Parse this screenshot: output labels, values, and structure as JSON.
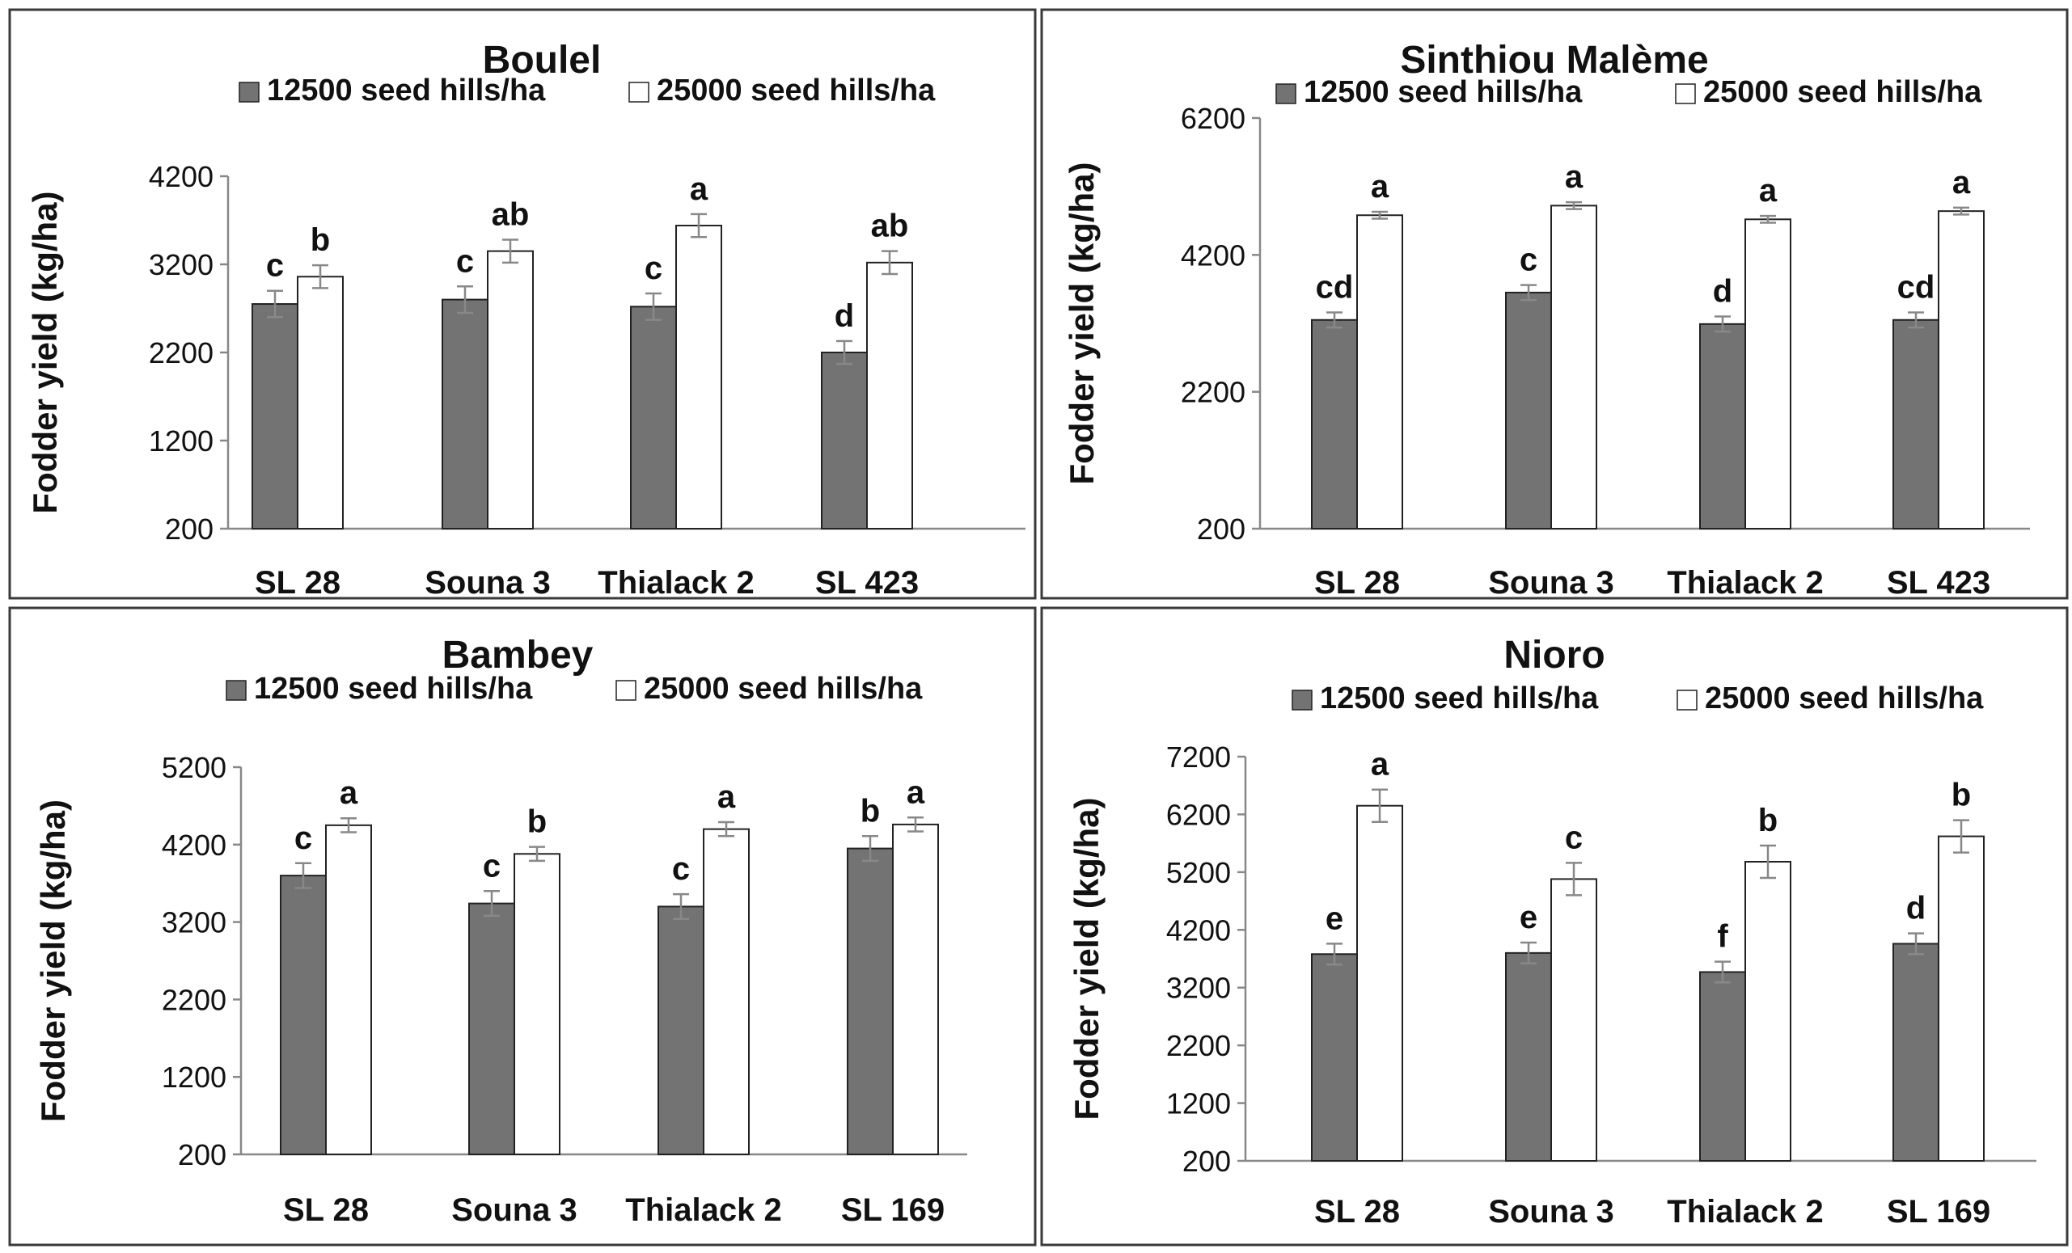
{
  "legend": {
    "low": "12500 seed hills/ha",
    "high": "25000 seed hills/ha"
  },
  "colors": {
    "low_fill": "#737373",
    "high_fill": "#ffffff",
    "bar_stroke": "#222222",
    "border": "#3a3a3a",
    "axis": "#888888",
    "text": "#111111"
  },
  "chart_data": [
    {
      "type": "bar",
      "title": "Boulel",
      "ylabel": "Fodder yield (kg/ha)",
      "ylim": [
        200,
        4200
      ],
      "yticks": [
        200,
        1200,
        2200,
        3200,
        4200
      ],
      "yticklabels": [
        "200",
        "1200",
        "2200",
        "3200",
        "4200"
      ],
      "categories": [
        "SL 28",
        "Souna 3",
        "Thialack 2",
        "SL 423"
      ],
      "series": [
        {
          "name": "12500 seed hills/ha",
          "values": [
            2750,
            2800,
            2720,
            2200
          ],
          "errors": [
            150,
            150,
            150,
            130
          ],
          "letters": [
            "c",
            "c",
            "c",
            "d"
          ]
        },
        {
          "name": "25000 seed hills/ha",
          "values": [
            3060,
            3350,
            3640,
            3220
          ],
          "errors": [
            130,
            130,
            130,
            130
          ],
          "letters": [
            "b",
            "ab",
            "a",
            "ab"
          ]
        }
      ]
    },
    {
      "type": "bar",
      "title": "Sinthiou Malème",
      "ylabel": "Fodder yield (kg/ha)",
      "ylim": [
        200,
        6200
      ],
      "yticks": [
        200,
        2200,
        4200,
        6200
      ],
      "yticklabels": [
        "200",
        "2200",
        "4200",
        "6200"
      ],
      "categories": [
        "SL 28",
        "Souna 3",
        "Thialack 2",
        "SL 423"
      ],
      "series": [
        {
          "name": "12500 seed hills/ha",
          "values": [
            3250,
            3650,
            3190,
            3250
          ],
          "errors": [
            110,
            110,
            110,
            110
          ],
          "letters": [
            "cd",
            "c",
            "d",
            "cd"
          ]
        },
        {
          "name": "25000 seed hills/ha",
          "values": [
            4780,
            4920,
            4720,
            4840
          ],
          "errors": [
            50,
            50,
            50,
            50
          ],
          "letters": [
            "a",
            "a",
            "a",
            "a"
          ]
        }
      ]
    },
    {
      "type": "bar",
      "title": "Bambey",
      "ylabel": "Fodder yield (kg/ha)",
      "ylim": [
        200,
        5200
      ],
      "yticks": [
        200,
        1200,
        2200,
        3200,
        4200,
        5200
      ],
      "yticklabels": [
        "200",
        "1200",
        "2200",
        "3200",
        "4200",
        "5200"
      ],
      "categories": [
        "SL 28",
        "Souna 3",
        "Thialack 2",
        "SL 169"
      ],
      "series": [
        {
          "name": "12500 seed hills/ha",
          "values": [
            3800,
            3440,
            3400,
            4150
          ],
          "errors": [
            160,
            160,
            160,
            160
          ],
          "letters": [
            "c",
            "c",
            "c",
            "b"
          ]
        },
        {
          "name": "25000 seed hills/ha",
          "values": [
            4450,
            4080,
            4400,
            4460
          ],
          "errors": [
            90,
            90,
            90,
            90
          ],
          "letters": [
            "a",
            "b",
            "a",
            "a"
          ]
        }
      ]
    },
    {
      "type": "bar",
      "title": "Nioro",
      "ylabel": "Fodder yield (kg/ha)",
      "ylim": [
        200,
        7200
      ],
      "yticks": [
        200,
        1200,
        2200,
        3200,
        4200,
        5200,
        6200,
        7200
      ],
      "yticklabels": [
        "200",
        "1200",
        "2200",
        "3200",
        "4200",
        "5200",
        "6200",
        "7200"
      ],
      "categories": [
        "SL 28",
        "Souna 3",
        "Thialack 2",
        "SL 169"
      ],
      "series": [
        {
          "name": "12500 seed hills/ha",
          "values": [
            3780,
            3800,
            3470,
            3960
          ],
          "errors": [
            180,
            180,
            180,
            180
          ],
          "letters": [
            "e",
            "e",
            "f",
            "d"
          ]
        },
        {
          "name": "25000 seed hills/ha",
          "values": [
            6350,
            5080,
            5380,
            5820
          ],
          "errors": [
            280,
            280,
            280,
            280
          ],
          "letters": [
            "a",
            "c",
            "b",
            "b"
          ]
        }
      ]
    }
  ]
}
